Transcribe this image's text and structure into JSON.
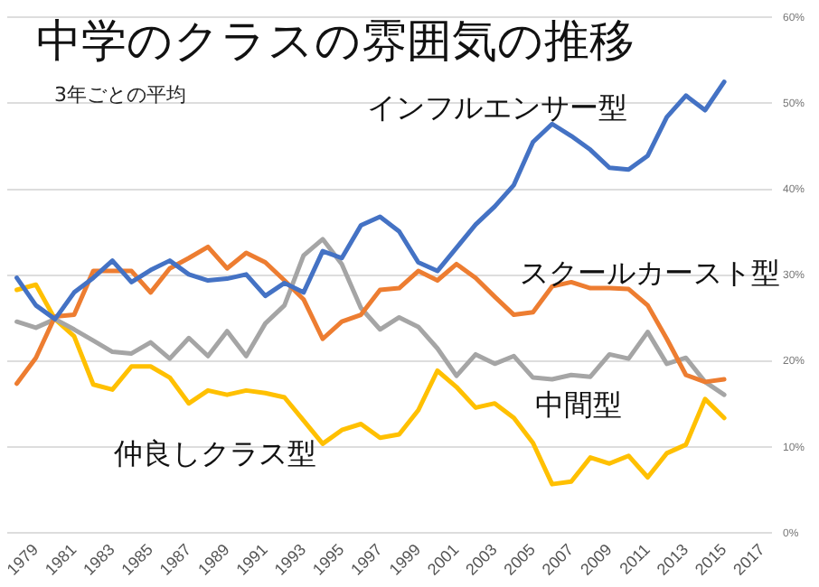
{
  "chart_data": {
    "type": "line",
    "title": "中学のクラスの雰囲気の推移",
    "subtitle": "3年ごとの平均",
    "categories": [
      null,
      "1979",
      null,
      "1981",
      null,
      "1983",
      null,
      "1985",
      null,
      "1987",
      null,
      "1989",
      null,
      "1991",
      null,
      "1993",
      null,
      "1995",
      null,
      "1997",
      null,
      "1999",
      null,
      "2001",
      null,
      "2003",
      null,
      "2005",
      null,
      "2007",
      null,
      "2009",
      null,
      "2011",
      null,
      "2013",
      null,
      "2015",
      null,
      "2017"
    ],
    "series": [
      {
        "name": "インフルエンサー型",
        "color": "#4472c4",
        "values": [
          29.7,
          26.5,
          24.9,
          28.0,
          29.7,
          31.7,
          29.2,
          30.6,
          31.7,
          30.1,
          29.4,
          29.6,
          30.1,
          27.6,
          29.1,
          28.0,
          32.8,
          32.0,
          35.8,
          36.8,
          35.1,
          31.5,
          30.5,
          33.2,
          35.9,
          38.0,
          40.5,
          45.5,
          47.6,
          46.2,
          44.6,
          42.5,
          42.3,
          43.9,
          48.4,
          50.9,
          49.2,
          52.5,
          null,
          null
        ]
      },
      {
        "name": "スクールカースト型",
        "color": "#ed7d31",
        "values": [
          17.4,
          20.4,
          25.2,
          25.4,
          30.5,
          30.5,
          30.5,
          28.0,
          30.8,
          32.0,
          33.3,
          30.8,
          32.6,
          31.5,
          29.4,
          27.2,
          22.6,
          24.6,
          25.4,
          28.3,
          28.5,
          30.5,
          29.4,
          31.3,
          29.7,
          27.5,
          25.4,
          25.7,
          28.7,
          29.2,
          28.5,
          28.5,
          28.4,
          26.5,
          22.6,
          18.4,
          17.6,
          17.9,
          null,
          null
        ]
      },
      {
        "name": "中間型",
        "color": "#a5a5a5",
        "values": [
          24.6,
          23.9,
          24.9,
          23.7,
          22.4,
          21.1,
          20.9,
          22.2,
          20.3,
          22.7,
          20.6,
          23.5,
          20.6,
          24.4,
          26.5,
          32.3,
          34.2,
          31.3,
          26.2,
          23.7,
          25.1,
          24.0,
          21.5,
          18.3,
          20.8,
          19.7,
          20.6,
          18.1,
          17.9,
          18.4,
          18.2,
          20.8,
          20.3,
          23.4,
          19.7,
          20.4,
          17.6,
          16.1,
          null,
          null
        ]
      },
      {
        "name": "仲良しクラス型",
        "color": "#ffc000",
        "values": [
          28.3,
          28.9,
          24.9,
          22.9,
          17.3,
          16.7,
          19.4,
          19.4,
          18.1,
          15.1,
          16.6,
          16.1,
          16.6,
          16.3,
          15.8,
          13.1,
          10.4,
          12.0,
          12.7,
          11.1,
          11.5,
          14.3,
          18.9,
          17.0,
          14.6,
          15.1,
          13.4,
          10.5,
          5.7,
          6.0,
          8.8,
          8.1,
          9.0,
          6.5,
          9.3,
          10.3,
          15.6,
          13.4,
          null,
          null
        ]
      }
    ],
    "ylim": [
      0,
      60
    ],
    "yticks": [
      {
        "value": 0,
        "label": "0%"
      },
      {
        "value": 10,
        "label": "10%"
      },
      {
        "value": 20,
        "label": "20%"
      },
      {
        "value": 30,
        "label": "30%"
      },
      {
        "value": 40,
        "label": "40%"
      },
      {
        "value": 50,
        "label": "50%"
      },
      {
        "value": 60,
        "label": "60%"
      }
    ],
    "grid": "y",
    "legend": false,
    "marker": "none",
    "line_style": "solid"
  }
}
